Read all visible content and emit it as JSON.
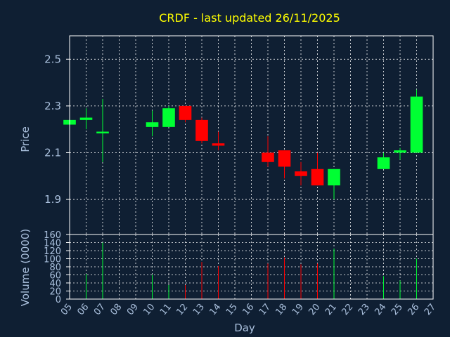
{
  "title": "CRDF - last updated 26/11/2025",
  "colors": {
    "background": "#0f1f33",
    "frame": "#ffffff",
    "grid": "#ffffff",
    "text": "#aac0dd",
    "title": "#ffff00",
    "up": "#00ff33",
    "down": "#ff0000"
  },
  "chart_data": [
    {
      "type": "candlestick",
      "ylabel": "Price",
      "ylim": [
        1.75,
        2.6
      ],
      "yticks": [
        1.9,
        2.1,
        2.3,
        2.5
      ],
      "grid": true,
      "xlim": [
        5,
        27
      ],
      "candles": [
        {
          "day": 5,
          "open": 2.22,
          "high": 2.24,
          "low": 2.22,
          "close": 2.24
        },
        {
          "day": 6,
          "open": 2.24,
          "high": 2.29,
          "low": 2.2,
          "close": 2.25
        },
        {
          "day": 7,
          "open": 2.19,
          "high": 2.33,
          "low": 2.06,
          "close": 2.19
        },
        {
          "day": 10,
          "open": 2.21,
          "high": 2.28,
          "low": 2.17,
          "close": 2.23
        },
        {
          "day": 11,
          "open": 2.21,
          "high": 2.3,
          "low": 2.21,
          "close": 2.29
        },
        {
          "day": 12,
          "open": 2.3,
          "high": 2.3,
          "low": 2.23,
          "close": 2.24
        },
        {
          "day": 13,
          "open": 2.24,
          "high": 2.25,
          "low": 2.14,
          "close": 2.15
        },
        {
          "day": 14,
          "open": 2.14,
          "high": 2.19,
          "low": 2.11,
          "close": 2.13
        },
        {
          "day": 17,
          "open": 2.1,
          "high": 2.17,
          "low": 2.04,
          "close": 2.06
        },
        {
          "day": 18,
          "open": 2.11,
          "high": 2.11,
          "low": 1.99,
          "close": 2.04
        },
        {
          "day": 19,
          "open": 2.02,
          "high": 2.06,
          "low": 1.96,
          "close": 2.0
        },
        {
          "day": 20,
          "open": 2.03,
          "high": 2.1,
          "low": 1.96,
          "close": 1.96
        },
        {
          "day": 21,
          "open": 1.96,
          "high": 2.03,
          "low": 1.9,
          "close": 2.03
        },
        {
          "day": 24,
          "open": 2.03,
          "high": 2.1,
          "low": 2.03,
          "close": 2.08
        },
        {
          "day": 25,
          "open": 2.1,
          "high": 2.12,
          "low": 2.07,
          "close": 2.11
        },
        {
          "day": 26,
          "open": 2.1,
          "high": 2.37,
          "low": 2.1,
          "close": 2.34
        }
      ]
    },
    {
      "type": "bar",
      "ylabel": "Volume (0000)",
      "ylim": [
        0,
        160
      ],
      "yticks": [
        0,
        20,
        40,
        60,
        80,
        100,
        120,
        140,
        160
      ],
      "xlabel": "Day",
      "xticks": [
        "05",
        "06",
        "07",
        "08",
        "09",
        "10",
        "11",
        "12",
        "13",
        "14",
        "15",
        "16",
        "17",
        "18",
        "19",
        "20",
        "21",
        "22",
        "23",
        "24",
        "25",
        "26",
        "27"
      ],
      "bars": [
        {
          "day": 6,
          "value": 62,
          "dir": "up"
        },
        {
          "day": 7,
          "value": 140,
          "dir": "up"
        },
        {
          "day": 10,
          "value": 60,
          "dir": "up"
        },
        {
          "day": 11,
          "value": 35,
          "dir": "up"
        },
        {
          "day": 12,
          "value": 35,
          "dir": "down"
        },
        {
          "day": 13,
          "value": 92,
          "dir": "down"
        },
        {
          "day": 14,
          "value": 82,
          "dir": "down"
        },
        {
          "day": 17,
          "value": 88,
          "dir": "down"
        },
        {
          "day": 18,
          "value": 103,
          "dir": "down"
        },
        {
          "day": 19,
          "value": 86,
          "dir": "down"
        },
        {
          "day": 20,
          "value": 88,
          "dir": "down"
        },
        {
          "day": 21,
          "value": 125,
          "dir": "up"
        },
        {
          "day": 24,
          "value": 57,
          "dir": "up"
        },
        {
          "day": 25,
          "value": 46,
          "dir": "up"
        },
        {
          "day": 26,
          "value": 100,
          "dir": "up"
        }
      ]
    }
  ]
}
